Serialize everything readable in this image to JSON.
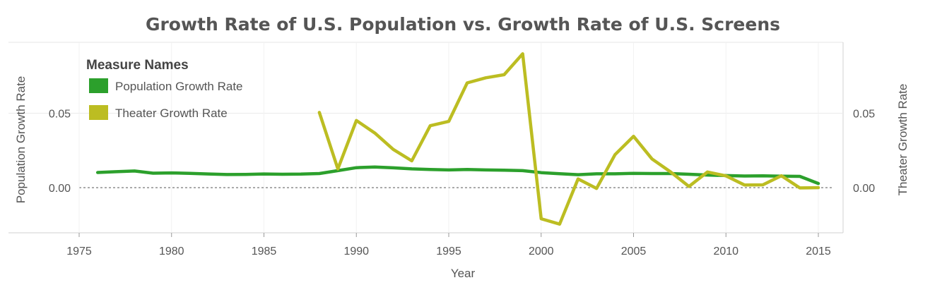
{
  "chart_data": {
    "type": "line",
    "title": "Growth Rate of U.S. Population vs. Growth Rate of U.S. Screens",
    "xlabel": "Year",
    "ylabel_left": "Population Growth Rate",
    "ylabel_right": "Theater Growth Rate",
    "x_ticks": [
      1975,
      1980,
      1985,
      1990,
      1995,
      2000,
      2005,
      2010,
      2015
    ],
    "y_ticks": [
      "0.00",
      "0.05"
    ],
    "xlim": [
      1973.2,
      2016.2
    ],
    "ylim": [
      -0.029,
      0.097
    ],
    "legend": {
      "title": "Measure Names",
      "placement": "top-left"
    },
    "series": [
      {
        "name": "Population Growth Rate",
        "color": "#2ca02c",
        "x": [
          1976,
          1977,
          1978,
          1979,
          1980,
          1981,
          1982,
          1983,
          1984,
          1985,
          1986,
          1987,
          1988,
          1989,
          1990,
          1991,
          1992,
          1993,
          1994,
          1995,
          1996,
          1997,
          1998,
          1999,
          2000,
          2001,
          2002,
          2003,
          2004,
          2005,
          2006,
          2007,
          2008,
          2009,
          2010,
          2011,
          2012,
          2013,
          2014,
          2015
        ],
        "values": [
          0.0102,
          0.0107,
          0.0112,
          0.0097,
          0.0099,
          0.0096,
          0.0092,
          0.0088,
          0.0089,
          0.0092,
          0.009,
          0.0091,
          0.0095,
          0.0114,
          0.0134,
          0.0139,
          0.0133,
          0.0126,
          0.0122,
          0.0119,
          0.0122,
          0.0119,
          0.0117,
          0.0114,
          0.0101,
          0.0094,
          0.0087,
          0.0093,
          0.0093,
          0.0096,
          0.0095,
          0.0095,
          0.009,
          0.0085,
          0.0081,
          0.0078,
          0.0079,
          0.0077,
          0.0076,
          0.0028
        ]
      },
      {
        "name": "Theater Growth Rate",
        "color": "#bcbd22",
        "x": [
          1988,
          1989,
          1990,
          1991,
          1992,
          1993,
          1994,
          1995,
          1996,
          1997,
          1998,
          1999,
          2000,
          2001,
          2002,
          2003,
          2004,
          2005,
          2006,
          2007,
          2008,
          2009,
          2010,
          2011,
          2012,
          2013,
          2014,
          2015
        ],
        "values": [
          0.0505,
          0.0126,
          0.0451,
          0.0367,
          0.0257,
          0.018,
          0.0416,
          0.0445,
          0.0704,
          0.0738,
          0.0759,
          0.0899,
          -0.0209,
          -0.0245,
          0.0059,
          -0.0005,
          0.0222,
          0.0345,
          0.0193,
          0.0106,
          0.0008,
          0.0105,
          0.0079,
          0.0018,
          0.0019,
          0.008,
          -0.0002,
          0.0
        ]
      }
    ]
  }
}
